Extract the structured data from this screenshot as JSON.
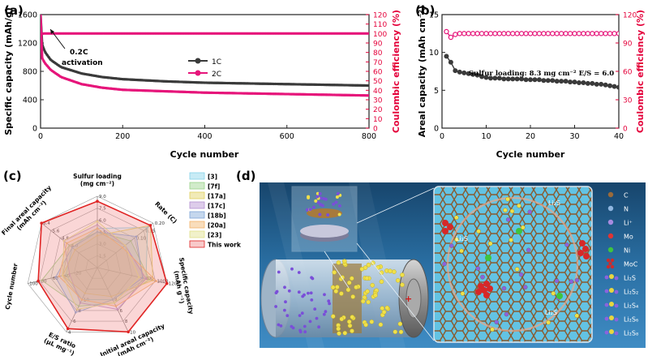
{
  "colors": {
    "black": "#222222",
    "dark_gray": "#3a3a3a",
    "magenta": "#e6157a",
    "red_axis": "#e4003a",
    "water_top": "#1e4f78",
    "water_bottom": "#2f7fb5"
  },
  "panels": {
    "a": "(a)",
    "b": "(b)",
    "c": "(c)",
    "d": "(d)"
  },
  "chart_data": [
    {
      "type": "line",
      "panel": "(a)",
      "xlabel": "Cycle number",
      "ylabel": "Specific capacity (mAh/g)",
      "y2label": "Coulombic efficiency (%)",
      "xlim": [
        0,
        800
      ],
      "ylim": [
        0,
        1600
      ],
      "y2lim": [
        0,
        120
      ],
      "xticks": [
        "0",
        "200",
        "400",
        "600",
        "800"
      ],
      "yticks": [
        "0",
        "400",
        "800",
        "1200",
        "1600"
      ],
      "y2ticks": [
        "0",
        "10",
        "20",
        "30",
        "40",
        "50",
        "60",
        "70",
        "80",
        "90",
        "100",
        "110",
        "120"
      ],
      "annotation": "0.2C activation",
      "series": [
        {
          "name": "1C",
          "axis": "left",
          "color": "#3a3a3a",
          "x": [
            0,
            3,
            10,
            25,
            50,
            100,
            150,
            200,
            300,
            400,
            500,
            600,
            700,
            800
          ],
          "y": [
            1600,
            1200,
            1080,
            960,
            860,
            770,
            720,
            690,
            660,
            640,
            630,
            620,
            610,
            600
          ]
        },
        {
          "name": "2C",
          "axis": "left",
          "color": "#e6157a",
          "x": [
            0,
            3,
            10,
            25,
            50,
            100,
            150,
            200,
            300,
            400,
            500,
            600,
            700,
            800
          ],
          "y": [
            1600,
            1000,
            920,
            820,
            720,
            620,
            570,
            540,
            520,
            500,
            490,
            480,
            470,
            460
          ]
        },
        {
          "name": "CE",
          "axis": "right",
          "color": "#e6157a",
          "x": [
            0,
            5,
            50,
            200,
            400,
            600,
            800
          ],
          "y": [
            98,
            100,
            100,
            100,
            100,
            100,
            100
          ]
        }
      ]
    },
    {
      "type": "line",
      "panel": "(b)",
      "xlabel": "Cycle number",
      "ylabel": "Areal capacity (mAh cm⁻²)",
      "y2label": "Coulombic efficiency (%)",
      "xlim": [
        0,
        40
      ],
      "ylim": [
        0,
        15
      ],
      "y2lim": [
        0,
        120
      ],
      "xticks": [
        "0",
        "10",
        "20",
        "30",
        "40"
      ],
      "yticks": [
        "0",
        "5",
        "10",
        "15"
      ],
      "y2ticks": [
        "0",
        "30",
        "60",
        "90",
        "120"
      ],
      "annotation": "Sulfur loading: 8.3 mg cm⁻²    E/S = 6.0",
      "series": [
        {
          "name": "Areal capacity",
          "axis": "left",
          "color": "#3a3a3a",
          "x": [
            1,
            2,
            3,
            4,
            5,
            6,
            7,
            8,
            9,
            10,
            11,
            12,
            13,
            14,
            15,
            16,
            17,
            18,
            19,
            20,
            21,
            22,
            23,
            24,
            25,
            26,
            27,
            28,
            29,
            30,
            31,
            32,
            33,
            34,
            35,
            36,
            37,
            38,
            39,
            40
          ],
          "y": [
            9.5,
            8.7,
            7.6,
            7.4,
            7.3,
            7.2,
            7.1,
            7.0,
            6.8,
            6.7,
            6.6,
            6.6,
            6.6,
            6.5,
            6.5,
            6.5,
            6.5,
            6.5,
            6.4,
            6.4,
            6.4,
            6.4,
            6.3,
            6.3,
            6.3,
            6.2,
            6.2,
            6.2,
            6.1,
            6.1,
            6.0,
            6.0,
            5.9,
            5.9,
            5.8,
            5.8,
            5.7,
            5.6,
            5.5,
            5.4
          ]
        },
        {
          "name": "CE",
          "axis": "right",
          "color": "#e6157a",
          "x": [
            1,
            2,
            3,
            4,
            5,
            6,
            7,
            8,
            9,
            10,
            11,
            12,
            13,
            14,
            15,
            16,
            17,
            18,
            19,
            20,
            21,
            22,
            23,
            24,
            25,
            26,
            27,
            28,
            29,
            30,
            31,
            32,
            33,
            34,
            35,
            36,
            37,
            38,
            39,
            40
          ],
          "y": [
            102,
            96,
            99,
            100,
            100,
            100,
            100,
            100,
            100,
            100,
            100,
            100,
            100,
            100,
            100,
            100,
            100,
            100,
            100,
            100,
            100,
            100,
            100,
            100,
            100,
            100,
            100,
            100,
            100,
            100,
            100,
            100,
            100,
            100,
            100,
            100,
            100,
            100,
            100,
            100
          ]
        }
      ]
    },
    {
      "type": "radar",
      "panel": "(c)",
      "axes": [
        {
          "label": [
            "Sulfur loading",
            "(mg cm⁻²)"
          ],
          "max": 9.0,
          "ticks": [
            "9.0",
            "7.5",
            "6.0",
            "4.5",
            "3.0",
            "1.5"
          ]
        },
        {
          "label": [
            "Rate (C)"
          ],
          "max": 0.2,
          "ticks": [
            "0.20",
            "0.15",
            "0.10"
          ]
        },
        {
          "label": [
            "Specific capacity",
            "(mAh g⁻¹)"
          ],
          "max": 1200,
          "ticks": [
            "1200",
            "1000",
            "800"
          ]
        },
        {
          "label": [
            "Initial areal capacity",
            "(mAh cm⁻²)"
          ],
          "max": 10,
          "ticks": [
            "10",
            "8",
            "6",
            "4"
          ]
        },
        {
          "label": [
            "E/S ratio",
            "(μL mg⁻¹)"
          ],
          "max": 1,
          "ticks": [
            "4",
            "6",
            "8",
            "10"
          ]
        },
        {
          "label": [
            "Cycle number"
          ],
          "max": 100,
          "ticks": [
            "100",
            "80",
            "60",
            "40",
            "20"
          ]
        },
        {
          "label": [
            "Final areal capacity",
            "(mAh cm⁻²)"
          ],
          "max": 6.4,
          "ticks": [
            "6.4",
            "5.6",
            "4.8",
            "4.0"
          ]
        }
      ],
      "legend": [
        "[3]",
        "[7f]",
        "[17a]",
        "[17c]",
        "[18b]",
        "[20a]",
        "[23]",
        "This work"
      ],
      "legend_colors": [
        "#86d3e8",
        "#9ad38a",
        "#e0d060",
        "#b48fd0",
        "#7fa6d8",
        "#f2b36a",
        "#e0e08a",
        "#f08a8a"
      ],
      "series": [
        {
          "name": "[3]",
          "values": [
            0.55,
            0.9,
            0.7,
            0.5,
            0.5,
            0.45,
            0.45
          ]
        },
        {
          "name": "[7f]",
          "values": [
            0.5,
            0.6,
            0.75,
            0.55,
            0.6,
            0.8,
            0.5
          ]
        },
        {
          "name": "[17a]",
          "values": [
            0.45,
            0.95,
            0.8,
            0.45,
            0.4,
            0.5,
            0.4
          ]
        },
        {
          "name": "[17c]",
          "values": [
            0.6,
            0.5,
            0.7,
            0.65,
            0.55,
            0.4,
            0.6
          ]
        },
        {
          "name": "[18b]",
          "values": [
            0.5,
            0.7,
            0.65,
            0.5,
            0.7,
            0.6,
            0.45
          ]
        },
        {
          "name": "[20a]",
          "values": [
            0.55,
            0.45,
            0.85,
            0.6,
            0.5,
            0.55,
            0.55
          ]
        },
        {
          "name": "[23]",
          "values": [
            0.65,
            0.5,
            0.6,
            0.55,
            0.65,
            0.5,
            0.6
          ]
        },
        {
          "name": "This work",
          "values": [
            0.93,
            0.95,
            1.0,
            1.0,
            0.95,
            0.85,
            1.0
          ]
        }
      ]
    }
  ],
  "schematic": {
    "legend": [
      {
        "label": "C",
        "color": "#9a6a3a"
      },
      {
        "label": "N",
        "color": "#8fb6e0"
      },
      {
        "label": "Li⁺",
        "color": "#a78be0"
      },
      {
        "label": "Mo",
        "color": "#e03434"
      },
      {
        "label": "Ni",
        "color": "#3ec43e"
      },
      {
        "label": "MoC",
        "color": "#d02a2a"
      },
      {
        "label": "Li₂S",
        "color": "#e8d640"
      },
      {
        "label": "Li₂S₂",
        "color": "#e8d640"
      },
      {
        "label": "Li₂S₄",
        "color": "#e8d640"
      },
      {
        "label": "Li₂S₆",
        "color": "#e8d640"
      },
      {
        "label": "Li₂S₈",
        "color": "#e8d640"
      }
    ],
    "inset_labels": [
      "Li₂S",
      "Li₂S",
      "Li₂S"
    ]
  }
}
